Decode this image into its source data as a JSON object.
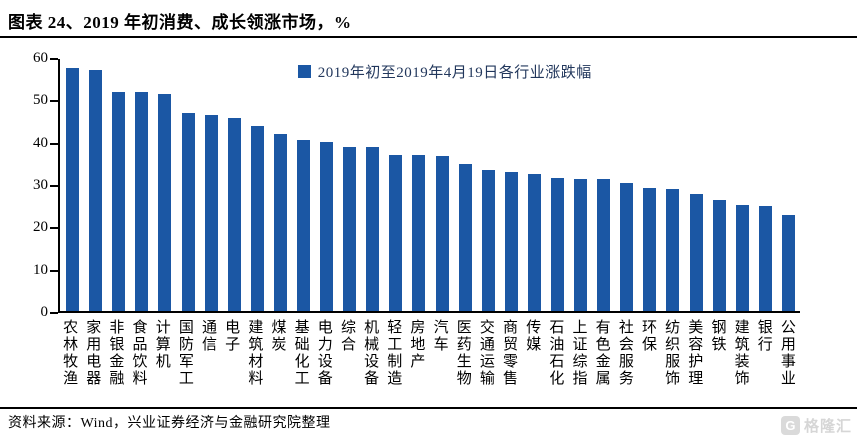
{
  "title": "图表 24、2019 年初消费、成长领涨市场，%",
  "legend": {
    "label": "2019年初至2019年4月19日各行业涨跌幅"
  },
  "footer": {
    "text": "资料来源：Wind，兴业证券经济与金融研究院整理"
  },
  "watermark": {
    "icon_letter": "G",
    "text": "格隆汇"
  },
  "colors": {
    "bar": "#1b57a4",
    "axis": "#000000",
    "legend_text": "#22375c",
    "watermark": "#d6d6d6"
  },
  "chart_data": {
    "type": "bar",
    "title": "2019 年初消费、成长领涨市场，%",
    "xlabel": "",
    "ylabel": "",
    "ylim": [
      0,
      60
    ],
    "yticks": [
      0,
      10,
      20,
      30,
      40,
      50,
      60
    ],
    "grid": false,
    "legend_position": "top-center",
    "legend_entries": [
      "2019年初至2019年4月19日各行业涨跌幅"
    ],
    "categories": [
      "农林牧渔",
      "家用电器",
      "非银金融",
      "食品饮料",
      "计算机",
      "国防军工",
      "通信",
      "电子",
      "建筑材料",
      "煤炭",
      "基础化工",
      "电力设备",
      "综合",
      "机械设备",
      "轻工制造",
      "房地产",
      "汽车",
      "医药生物",
      "交通运输",
      "商贸零售",
      "传媒",
      "石油石化",
      "上证综指",
      "有色金属",
      "社会服务",
      "环保",
      "纺织服饰",
      "美容护理",
      "钢铁",
      "建筑装饰",
      "银行",
      "公用事业"
    ],
    "values": [
      57.4,
      56.9,
      51.7,
      51.7,
      51.3,
      46.8,
      46.3,
      45.5,
      43.6,
      41.9,
      40.4,
      39.9,
      38.8,
      38.7,
      36.9,
      36.8,
      36.7,
      34.8,
      33.3,
      32.9,
      32.4,
      31.4,
      31.2,
      31.1,
      30.2,
      29.1,
      28.8,
      27.7,
      26.3,
      25.1,
      24.9,
      22.8
    ]
  }
}
